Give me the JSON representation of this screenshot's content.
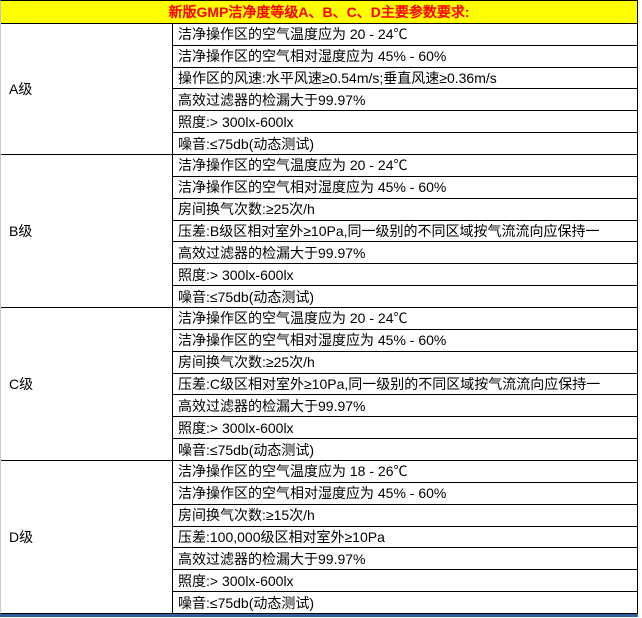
{
  "header": {
    "title": "新版GMP洁净度等级A、B、C、D主要参数要求:"
  },
  "colors": {
    "header_background": "#FFFF00",
    "header_text": "#FF0000",
    "table_border": "#000000",
    "bottom_accent_line": "#2F5F9E"
  },
  "sections": [
    {
      "label": "A级",
      "rows": [
        "洁净操作区的空气温度应为 20 - 24℃",
        "洁净操作区的空气相对湿度应为 45% - 60%",
        "操作区的风速:水平风速≥0.54m/s;垂直风速≥0.36m/s",
        "高效过滤器的检漏大于99.97%",
        "照度:> 300lx-600lx",
        "噪音:≤75db(动态测试)"
      ]
    },
    {
      "label": "B级",
      "rows": [
        "洁净操作区的空气温度应为 20 - 24℃",
        "洁净操作区的空气相对湿度应为 45% - 60%",
        "房间换气次数:≥25次/h",
        "压差:B级区相对室外≥10Pa,同一级别的不同区域按气流流向应保持一",
        "高效过滤器的检漏大于99.97%",
        "照度:> 300lx-600lx",
        "噪音:≤75db(动态测试)"
      ]
    },
    {
      "label": "C级",
      "rows": [
        "洁净操作区的空气温度应为 20 - 24℃",
        "洁净操作区的空气相对湿度应为 45% - 60%",
        "房间换气次数:≥25次/h",
        "压差:C级区相对室外≥10Pa,同一级别的不同区域按气流流向应保持一",
        "高效过滤器的检漏大于99.97%",
        "照度:> 300lx-600lx",
        "噪音:≤75db(动态测试)"
      ]
    },
    {
      "label": "D级",
      "rows": [
        "洁净操作区的空气温度应为 18 - 26℃",
        "洁净操作区的空气相对湿度应为 45% - 60%",
        "房间换气次数:≥15次/h",
        "压差:100,000级区相对室外≥10Pa",
        "高效过滤器的检漏大于99.97%",
        "照度:> 300lx-600lx",
        "噪音:≤75db(动态测试)"
      ]
    }
  ]
}
